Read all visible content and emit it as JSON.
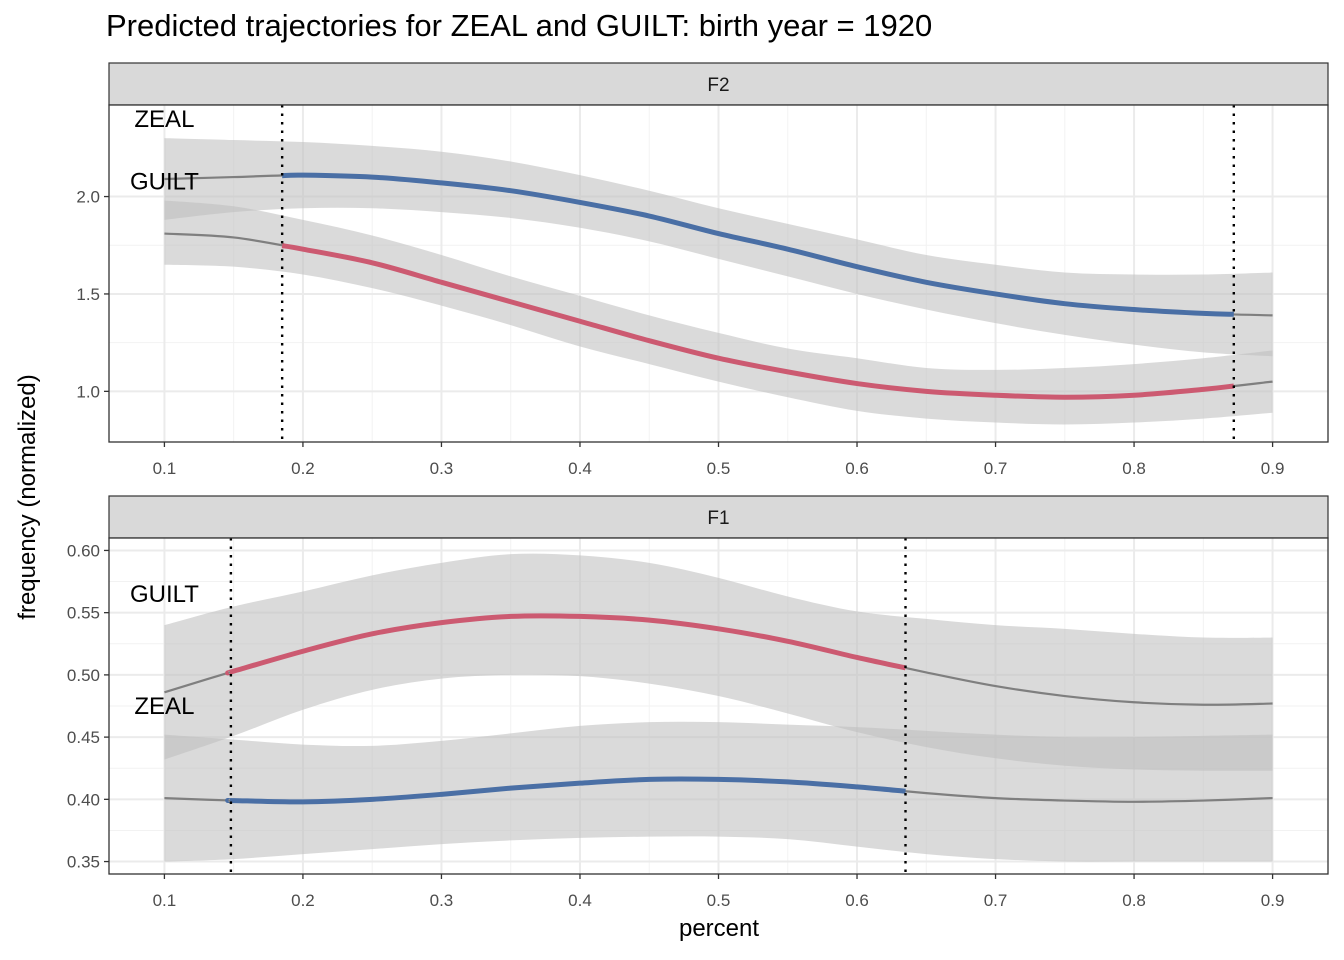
{
  "title": "Predicted trajectories for ZEAL and GUILT: birth year = 1920",
  "xlabel": "percent",
  "ylabel": "frequency (normalized)",
  "colors": {
    "ZEAL": "#4a6fa5",
    "GUILT": "#cc5a71",
    "outside": "#7f7f7f",
    "ribbon": "#bfbfbf"
  },
  "chart_data": [
    {
      "type": "line",
      "panel": "F2",
      "xlim": [
        0.06,
        0.94
      ],
      "ylim": [
        0.74,
        2.47
      ],
      "x_ticks": [
        "0.1",
        "0.2",
        "0.3",
        "0.4",
        "0.5",
        "0.6",
        "0.7",
        "0.8",
        "0.9"
      ],
      "y_ticks": [
        "1.0",
        "1.5",
        "2.0"
      ],
      "y_tick_values": [
        1.0,
        1.5,
        2.0
      ],
      "vlines": [
        0.185,
        0.872
      ],
      "highlight_range": [
        0.185,
        0.872
      ],
      "labels": [
        {
          "text": "ZEAL",
          "x": 0.1,
          "y": 2.39
        },
        {
          "text": "GUILT",
          "x": 0.1,
          "y": 2.07
        }
      ],
      "series": [
        {
          "name": "ZEAL",
          "color": "#4a6fa5",
          "x": [
            0.1,
            0.15,
            0.2,
            0.25,
            0.3,
            0.35,
            0.4,
            0.45,
            0.5,
            0.55,
            0.6,
            0.65,
            0.7,
            0.75,
            0.8,
            0.85,
            0.9
          ],
          "y": [
            2.09,
            2.1,
            2.11,
            2.1,
            2.07,
            2.03,
            1.97,
            1.9,
            1.81,
            1.73,
            1.64,
            1.56,
            1.5,
            1.45,
            1.42,
            1.4,
            1.39
          ],
          "lower": [
            1.88,
            1.92,
            1.94,
            1.94,
            1.92,
            1.89,
            1.84,
            1.77,
            1.68,
            1.59,
            1.5,
            1.42,
            1.35,
            1.29,
            1.24,
            1.2,
            1.18
          ],
          "upper": [
            2.3,
            2.29,
            2.28,
            2.26,
            2.23,
            2.18,
            2.11,
            2.03,
            1.94,
            1.86,
            1.78,
            1.7,
            1.65,
            1.61,
            1.6,
            1.6,
            1.61
          ]
        },
        {
          "name": "GUILT",
          "color": "#cc5a71",
          "x": [
            0.1,
            0.15,
            0.2,
            0.25,
            0.3,
            0.35,
            0.4,
            0.45,
            0.5,
            0.55,
            0.6,
            0.65,
            0.7,
            0.75,
            0.8,
            0.85,
            0.9
          ],
          "y": [
            1.81,
            1.79,
            1.73,
            1.66,
            1.56,
            1.46,
            1.36,
            1.26,
            1.17,
            1.1,
            1.04,
            1.0,
            0.98,
            0.97,
            0.98,
            1.01,
            1.05
          ],
          "lower": [
            1.65,
            1.64,
            1.6,
            1.53,
            1.44,
            1.34,
            1.23,
            1.14,
            1.05,
            0.97,
            0.9,
            0.86,
            0.84,
            0.83,
            0.84,
            0.86,
            0.89
          ],
          "upper": [
            1.98,
            1.95,
            1.88,
            1.8,
            1.7,
            1.59,
            1.49,
            1.39,
            1.3,
            1.22,
            1.17,
            1.12,
            1.11,
            1.12,
            1.14,
            1.17,
            1.21
          ]
        }
      ]
    },
    {
      "type": "line",
      "panel": "F1",
      "xlim": [
        0.06,
        0.94
      ],
      "ylim": [
        0.34,
        0.61
      ],
      "x_ticks": [
        "0.1",
        "0.2",
        "0.3",
        "0.4",
        "0.5",
        "0.6",
        "0.7",
        "0.8",
        "0.9"
      ],
      "y_ticks": [
        "0.35",
        "0.40",
        "0.45",
        "0.50",
        "0.55",
        "0.60"
      ],
      "y_tick_values": [
        0.35,
        0.4,
        0.45,
        0.5,
        0.55,
        0.6
      ],
      "vlines": [
        0.148,
        0.635
      ],
      "highlight_range": [
        0.148,
        0.635
      ],
      "labels": [
        {
          "text": "GUILT",
          "x": 0.1,
          "y": 0.5635
        },
        {
          "text": "ZEAL",
          "x": 0.1,
          "y": 0.4735
        }
      ],
      "series": [
        {
          "name": "GUILT",
          "color": "#cc5a71",
          "x": [
            0.1,
            0.15,
            0.2,
            0.25,
            0.3,
            0.35,
            0.4,
            0.45,
            0.5,
            0.55,
            0.6,
            0.65,
            0.7,
            0.75,
            0.8,
            0.85,
            0.9
          ],
          "y": [
            0.486,
            0.503,
            0.519,
            0.533,
            0.542,
            0.547,
            0.547,
            0.544,
            0.537,
            0.527,
            0.514,
            0.502,
            0.491,
            0.483,
            0.478,
            0.476,
            0.477
          ],
          "lower": [
            0.432,
            0.451,
            0.472,
            0.488,
            0.497,
            0.5,
            0.499,
            0.493,
            0.483,
            0.469,
            0.454,
            0.442,
            0.433,
            0.427,
            0.424,
            0.423,
            0.423
          ],
          "upper": [
            0.54,
            0.555,
            0.567,
            0.58,
            0.59,
            0.597,
            0.596,
            0.59,
            0.578,
            0.563,
            0.551,
            0.545,
            0.54,
            0.537,
            0.533,
            0.53,
            0.53
          ]
        },
        {
          "name": "ZEAL",
          "color": "#4a6fa5",
          "x": [
            0.1,
            0.15,
            0.2,
            0.25,
            0.3,
            0.35,
            0.4,
            0.45,
            0.5,
            0.55,
            0.6,
            0.65,
            0.7,
            0.75,
            0.8,
            0.85,
            0.9
          ],
          "y": [
            0.401,
            0.399,
            0.398,
            0.4,
            0.404,
            0.409,
            0.413,
            0.416,
            0.416,
            0.414,
            0.41,
            0.405,
            0.401,
            0.399,
            0.398,
            0.399,
            0.401
          ],
          "lower": [
            0.35,
            0.352,
            0.356,
            0.36,
            0.364,
            0.367,
            0.369,
            0.37,
            0.37,
            0.368,
            0.362,
            0.356,
            0.352,
            0.35,
            0.35,
            0.35,
            0.35
          ],
          "upper": [
            0.452,
            0.448,
            0.444,
            0.443,
            0.447,
            0.453,
            0.459,
            0.462,
            0.462,
            0.46,
            0.458,
            0.455,
            0.452,
            0.45,
            0.45,
            0.451,
            0.452
          ]
        }
      ]
    }
  ]
}
